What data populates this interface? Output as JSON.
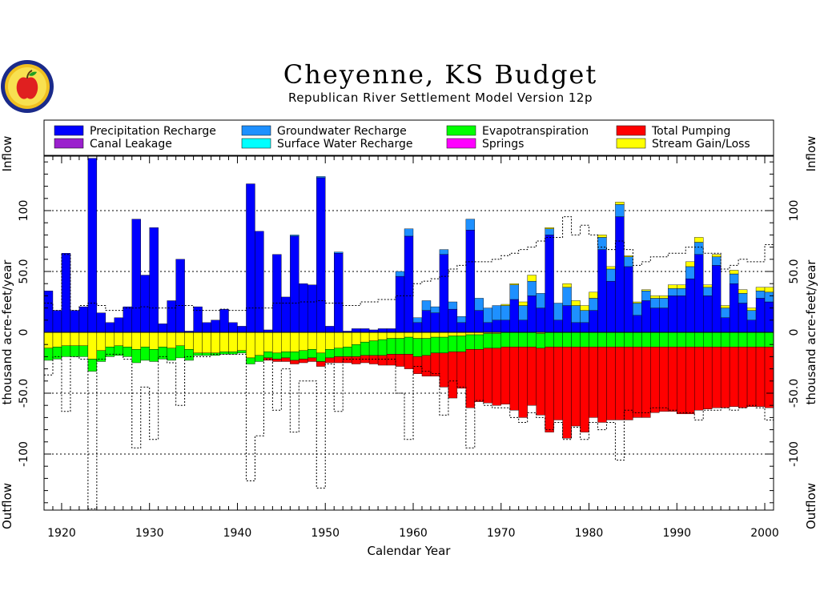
{
  "page": {
    "title": "Cheyenne, KS Budget",
    "subtitle": "Republican River Settlement Model Version 12p"
  },
  "colors": {
    "precipitation_recharge": "#0000ff",
    "groundwater_recharge": "#1e90ff",
    "evapotranspiration": "#00ff00",
    "total_pumping": "#ff0000",
    "canal_leakage": "#9a20cd",
    "surface_water_recharge": "#00ffff",
    "springs": "#ff00ff",
    "stream_gain_loss": "#ffff00"
  },
  "chart_data": {
    "type": "bar",
    "title": "Cheyenne, KS Budget",
    "subtitle": "Republican River Settlement Model Version 12p",
    "xlabel": "Calendar Year",
    "ylabel": "thousand acre-feet/year",
    "top_label": "Inflow",
    "bottom_label": "Outflow",
    "xlim": [
      1918,
      2001
    ],
    "ylim": [
      -145,
      145
    ],
    "xticks": [
      "1920",
      "1930",
      "1940",
      "1950",
      "1960",
      "1970",
      "1980",
      "1990",
      "2000"
    ],
    "yticks": [
      "-100",
      "-50.0",
      "0",
      "50.0",
      "100"
    ],
    "grid_y": [
      -100,
      -50,
      50,
      100
    ],
    "legend": [
      {
        "name": "Precipitation Recharge",
        "color_key": "precipitation_recharge"
      },
      {
        "name": "Groundwater Recharge",
        "color_key": "groundwater_recharge"
      },
      {
        "name": "Evapotranspiration",
        "color_key": "evapotranspiration"
      },
      {
        "name": "Total Pumping",
        "color_key": "total_pumping"
      },
      {
        "name": "Canal Leakage",
        "color_key": "canal_leakage"
      },
      {
        "name": "Surface Water Recharge",
        "color_key": "surface_water_recharge"
      },
      {
        "name": "Springs",
        "color_key": "springs"
      },
      {
        "name": "Stream Gain/Loss",
        "color_key": "stream_gain_loss"
      }
    ],
    "years": [
      1918,
      1919,
      1920,
      1921,
      1922,
      1923,
      1924,
      1925,
      1926,
      1927,
      1928,
      1929,
      1930,
      1931,
      1932,
      1933,
      1934,
      1935,
      1936,
      1937,
      1938,
      1939,
      1940,
      1941,
      1942,
      1943,
      1944,
      1945,
      1946,
      1947,
      1948,
      1949,
      1950,
      1951,
      1952,
      1953,
      1954,
      1955,
      1956,
      1957,
      1958,
      1959,
      1960,
      1961,
      1962,
      1963,
      1964,
      1965,
      1966,
      1967,
      1968,
      1969,
      1970,
      1971,
      1972,
      1973,
      1974,
      1975,
      1976,
      1977,
      1978,
      1979,
      1980,
      1981,
      1982,
      1983,
      1984,
      1985,
      1986,
      1987,
      1988,
      1989,
      1990,
      1991,
      1992,
      1993,
      1994,
      1995,
      1996,
      1997,
      1998,
      1999,
      2000
    ],
    "series": [
      {
        "name": "Precipitation Recharge",
        "color_key": "precipitation_recharge",
        "values": [
          34,
          18,
          65,
          18,
          21,
          143,
          16,
          8,
          12,
          21,
          93,
          47,
          86,
          7,
          26,
          60,
          1,
          21,
          8,
          10,
          19,
          8,
          5,
          122,
          83,
          2,
          64,
          29,
          79,
          40,
          39,
          127,
          5,
          65,
          1,
          3,
          3,
          2,
          3,
          3,
          46,
          79,
          8,
          18,
          16,
          64,
          19,
          8,
          84,
          18,
          8,
          10,
          10,
          27,
          10,
          30,
          20,
          80,
          10,
          22,
          8,
          8,
          18,
          68,
          42,
          95,
          54,
          14,
          26,
          20,
          20,
          30,
          30,
          44,
          64,
          30,
          55,
          12,
          40,
          24,
          10,
          28,
          25
        ]
      },
      {
        "name": "Groundwater Recharge",
        "color_key": "groundwater_recharge",
        "values": [
          0,
          0,
          0,
          0,
          0,
          0,
          0,
          0,
          0,
          0,
          0,
          0,
          0,
          0,
          0,
          0,
          0,
          0,
          0,
          0,
          0,
          0,
          0,
          0,
          0,
          0,
          0,
          0,
          1,
          0,
          0,
          1,
          0,
          1,
          0,
          0,
          0,
          0,
          0,
          0,
          4,
          6,
          4,
          8,
          5,
          4,
          6,
          5,
          9,
          10,
          12,
          12,
          12,
          12,
          12,
          12,
          12,
          5,
          14,
          15,
          14,
          10,
          10,
          10,
          10,
          10,
          8,
          10,
          8,
          8,
          8,
          6,
          6,
          10,
          10,
          7,
          7,
          8,
          8,
          8,
          8,
          6,
          8
        ]
      },
      {
        "name": "Stream Gain/Loss",
        "color_key": "stream_gain_loss",
        "values": [
          -13,
          -12,
          -11,
          -11,
          -11,
          -22,
          -15,
          -12,
          -11,
          -12,
          -14,
          -12,
          -14,
          -12,
          -13,
          -11,
          -14,
          -17,
          -17,
          -17,
          -16,
          -16,
          -15,
          -21,
          -19,
          -16,
          -17,
          -16,
          -16,
          -15,
          -14,
          -17,
          -14,
          -13,
          -12,
          -10,
          -8,
          -7,
          -6,
          -5,
          -5,
          -4,
          -5,
          -5,
          -4,
          -4,
          -3,
          -3,
          -2,
          -2,
          -1,
          -1,
          1,
          1,
          3,
          5,
          -1,
          1,
          0,
          3,
          4,
          4,
          5,
          2,
          2,
          2,
          1,
          1,
          1,
          2,
          2,
          3,
          3,
          4,
          4,
          2,
          2,
          2,
          3,
          3,
          2,
          3,
          4
        ]
      },
      {
        "name": "Evapotranspiration",
        "color_key": "evapotranspiration",
        "values": [
          -10,
          -10,
          -9,
          -9,
          -9,
          -10,
          -9,
          -8,
          -8,
          -8,
          -11,
          -11,
          -10,
          -10,
          -10,
          -10,
          -9,
          -2,
          -2,
          -2,
          -2,
          -2,
          -2,
          -5,
          -5,
          -5,
          -5,
          -5,
          -7,
          -7,
          -7,
          -7,
          -7,
          -7,
          -8,
          -10,
          -11,
          -12,
          -13,
          -13,
          -13,
          -14,
          -15,
          -14,
          -13,
          -13,
          -13,
          -13,
          -12,
          -12,
          -12,
          -12,
          -12,
          -12,
          -12,
          -12,
          -12,
          -12,
          -12,
          -12,
          -12,
          -12,
          -12,
          -12,
          -12,
          -12,
          -12,
          -12,
          -12,
          -12,
          -12,
          -12,
          -12,
          -12,
          -12,
          -12,
          -12,
          -12,
          -12,
          -12,
          -12,
          -12,
          -12
        ]
      },
      {
        "name": "Total Pumping",
        "color_key": "total_pumping",
        "values": [
          0,
          0,
          0,
          0,
          0,
          0,
          0,
          0,
          0,
          0,
          0,
          0,
          0,
          0,
          0,
          0,
          0,
          0,
          0,
          0,
          0,
          0,
          0,
          0,
          0,
          -2,
          -2,
          -3,
          -3,
          -3,
          -3,
          -4,
          -4,
          -5,
          -5,
          -6,
          -6,
          -7,
          -8,
          -9,
          -10,
          -12,
          -14,
          -17,
          -19,
          -28,
          -38,
          -30,
          -48,
          -43,
          -45,
          -47,
          -47,
          -52,
          -58,
          -48,
          -55,
          -70,
          -60,
          -75,
          -65,
          -70,
          -58,
          -62,
          -60,
          -60,
          -60,
          -58,
          -58,
          -54,
          -53,
          -53,
          -55,
          -55,
          -52,
          -51,
          -50,
          -50,
          -49,
          -50,
          -49,
          -49,
          -50
        ]
      }
    ],
    "total_dotted": [
      24,
      18,
      64,
      18,
      22,
      24,
      22,
      18,
      18,
      20,
      20,
      21,
      20,
      20,
      20,
      22,
      22,
      18,
      18,
      18,
      19,
      18,
      18,
      20,
      20,
      20,
      24,
      24,
      24,
      25,
      25,
      26,
      24,
      24,
      22,
      22,
      25,
      25,
      27,
      27,
      30,
      30,
      40,
      42,
      44,
      46,
      52,
      55,
      58,
      58,
      58,
      60,
      63,
      65,
      68,
      70,
      75,
      78,
      78,
      95,
      80,
      88,
      80,
      70,
      68,
      75,
      68,
      55,
      58,
      62,
      62,
      65,
      65,
      70,
      70,
      65,
      65,
      52,
      55,
      60,
      58,
      58,
      72
    ],
    "outflow_dotted": [
      -35,
      -20,
      -65,
      -20,
      -22,
      -145,
      -22,
      -18,
      -18,
      -22,
      -95,
      -45,
      -88,
      -20,
      -25,
      -60,
      -20,
      -20,
      -20,
      -18,
      -18,
      -18,
      -18,
      -122,
      -85,
      -22,
      -64,
      -30,
      -82,
      -40,
      -40,
      -128,
      -26,
      -65,
      -22,
      -22,
      -22,
      -22,
      -22,
      -22,
      -50,
      -88,
      -28,
      -32,
      -34,
      -68,
      -40,
      -45,
      -95,
      -56,
      -60,
      -62,
      -62,
      -70,
      -74,
      -66,
      -70,
      -80,
      -74,
      -88,
      -78,
      -88,
      -74,
      -80,
      -74,
      -105,
      -64,
      -66,
      -66,
      -62,
      -62,
      -64,
      -66,
      -66,
      -72,
      -64,
      -64,
      -62,
      -64,
      -62,
      -60,
      -62,
      -72
    ]
  }
}
